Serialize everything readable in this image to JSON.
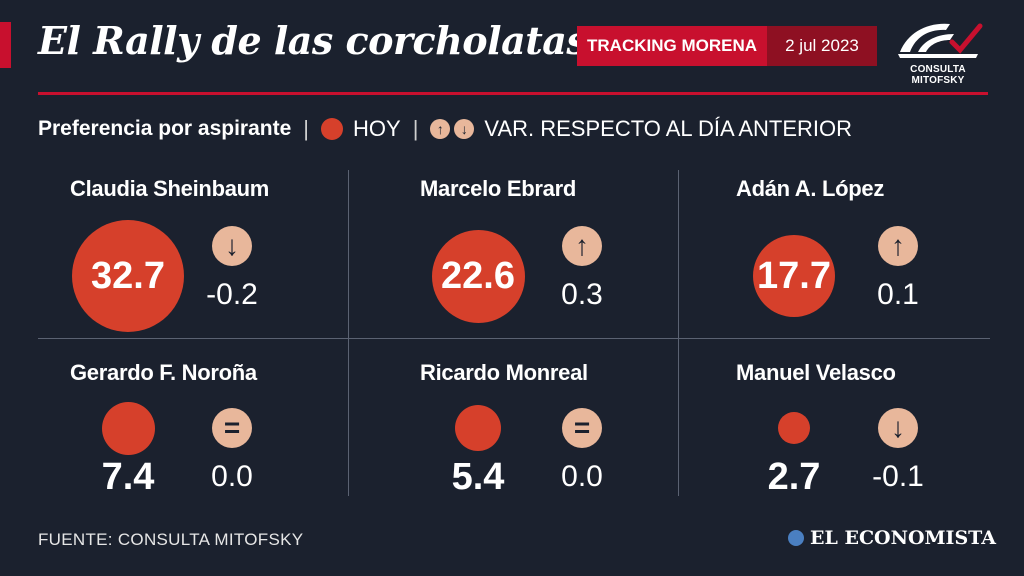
{
  "header": {
    "title": "El Rally de las corcholatas",
    "badge_label": "TRACKING MORENA",
    "date": "2 jul 2023",
    "logo_text": "CONSULTA MITOFSKY"
  },
  "legend": {
    "lead": "Preferencia por aspirante",
    "today_label": "HOY",
    "variation_label": "VAR. RESPECTO AL DÍA ANTERIOR",
    "up_glyph": "↑",
    "down_glyph": "↓"
  },
  "chart_data": {
    "type": "table",
    "title": "El Rally de las corcholatas",
    "aspirantes": [
      {
        "name": "Claudia Sheinbaum",
        "value": "32.7",
        "value_num": 32.7,
        "variation": "-0.2",
        "direction": "down",
        "glyph": "↓"
      },
      {
        "name": "Marcelo Ebrard",
        "value": "22.6",
        "value_num": 22.6,
        "variation": "0.3",
        "direction": "up",
        "glyph": "↑"
      },
      {
        "name": "Adán A. López",
        "value": "17.7",
        "value_num": 17.7,
        "variation": "0.1",
        "direction": "up",
        "glyph": "↑"
      },
      {
        "name": "Gerardo F. Noroña",
        "value": "7.4",
        "value_num": 7.4,
        "variation": "0.0",
        "direction": "equal",
        "glyph": "="
      },
      {
        "name": "Ricardo Monreal",
        "value": "5.4",
        "value_num": 5.4,
        "variation": "0.0",
        "direction": "equal",
        "glyph": "="
      },
      {
        "name": "Manuel Velasco",
        "value": "2.7",
        "value_num": 2.7,
        "variation": "-0.1",
        "direction": "down",
        "glyph": "↓"
      }
    ]
  },
  "footer": {
    "source": "FUENTE: CONSULTA MITOFSKY",
    "brand": "EL ECONOMISTA"
  },
  "colors": {
    "background": "#1b212e",
    "accent_red": "#c8102e",
    "circle": "#d6402b",
    "arrow_badge": "#e8b79b"
  }
}
